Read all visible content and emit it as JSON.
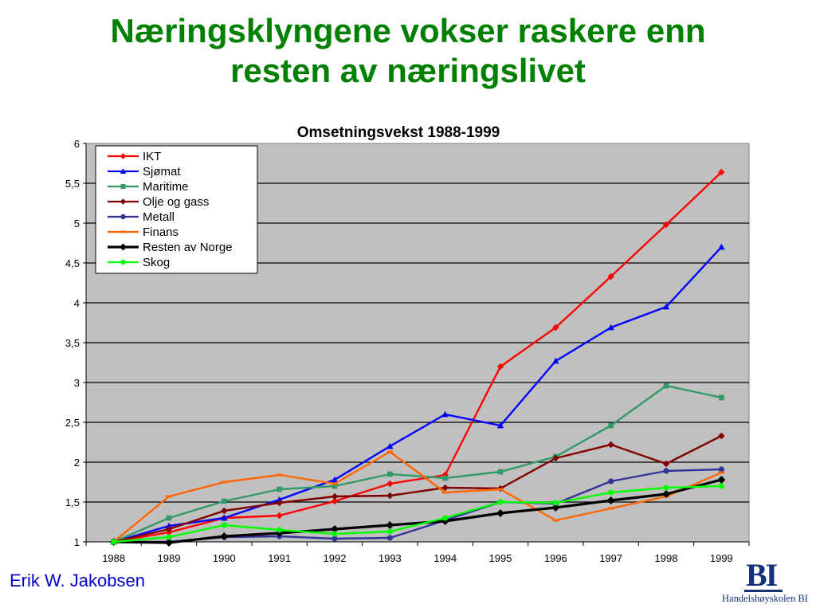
{
  "slide": {
    "title_line1": "Næringsklyngene vokser raskere enn",
    "title_line2": "resten av næringslivet",
    "author": "Erik W. Jakobsen",
    "logo_mark": "BI",
    "logo_text": "Handelshøyskolen BI"
  },
  "chart_data": {
    "type": "line",
    "title": "Omsetningsvekst 1988-1999",
    "xlabel": "",
    "ylabel": "",
    "x": [
      "1988",
      "1989",
      "1990",
      "1991",
      "1992",
      "1993",
      "1994",
      "1995",
      "1996",
      "1997",
      "1998",
      "1999"
    ],
    "ylim": [
      1,
      6
    ],
    "yticks": [
      1,
      1.5,
      2,
      2.5,
      3,
      3.5,
      4,
      4.5,
      5,
      5.5,
      6
    ],
    "ytick_labels": [
      "1",
      "1,5",
      "2",
      "2,5",
      "3",
      "3,5",
      "4",
      "4,5",
      "5",
      "5,5",
      "6"
    ],
    "grid": true,
    "background": "#c0c0c0",
    "legend_position": "top-left",
    "series": [
      {
        "name": "IKT",
        "color": "#ff0000",
        "marker": "diamond",
        "values": [
          1.0,
          1.12,
          1.3,
          1.33,
          1.51,
          1.73,
          1.84,
          3.2,
          3.69,
          4.33,
          4.98,
          5.64
        ]
      },
      {
        "name": "Sjømat",
        "color": "#0000ff",
        "marker": "triangle",
        "values": [
          1.0,
          1.2,
          1.3,
          1.53,
          1.78,
          2.2,
          2.6,
          2.46,
          3.27,
          3.69,
          3.95,
          4.7
        ]
      },
      {
        "name": "Maritime",
        "color": "#339966",
        "marker": "square",
        "values": [
          1.0,
          1.3,
          1.51,
          1.66,
          1.7,
          1.85,
          1.8,
          1.88,
          2.07,
          2.46,
          2.96,
          2.81
        ]
      },
      {
        "name": "Olje og gass",
        "color": "#800000",
        "marker": "diamond",
        "values": [
          1.0,
          1.16,
          1.39,
          1.49,
          1.57,
          1.58,
          1.68,
          1.67,
          2.05,
          2.22,
          1.98,
          2.33
        ]
      },
      {
        "name": "Metall",
        "color": "#333399",
        "marker": "circle",
        "values": [
          1.0,
          1.0,
          1.06,
          1.07,
          1.04,
          1.05,
          1.27,
          1.5,
          1.48,
          1.76,
          1.89,
          1.91
        ]
      },
      {
        "name": "Finans",
        "color": "#ff6600",
        "marker": "dash",
        "values": [
          1.0,
          1.57,
          1.75,
          1.84,
          1.73,
          2.13,
          1.62,
          1.66,
          1.27,
          1.42,
          1.57,
          1.87
        ]
      },
      {
        "name": "Resten av Norge",
        "color": "#000000",
        "marker": "diamond",
        "values": [
          1.0,
          0.99,
          1.07,
          1.11,
          1.16,
          1.21,
          1.26,
          1.36,
          1.43,
          1.52,
          1.6,
          1.78
        ]
      },
      {
        "name": "Skog",
        "color": "#00ff00",
        "marker": "circle",
        "values": [
          1.0,
          1.06,
          1.21,
          1.15,
          1.1,
          1.13,
          1.3,
          1.5,
          1.49,
          1.62,
          1.68,
          1.7
        ]
      }
    ]
  }
}
